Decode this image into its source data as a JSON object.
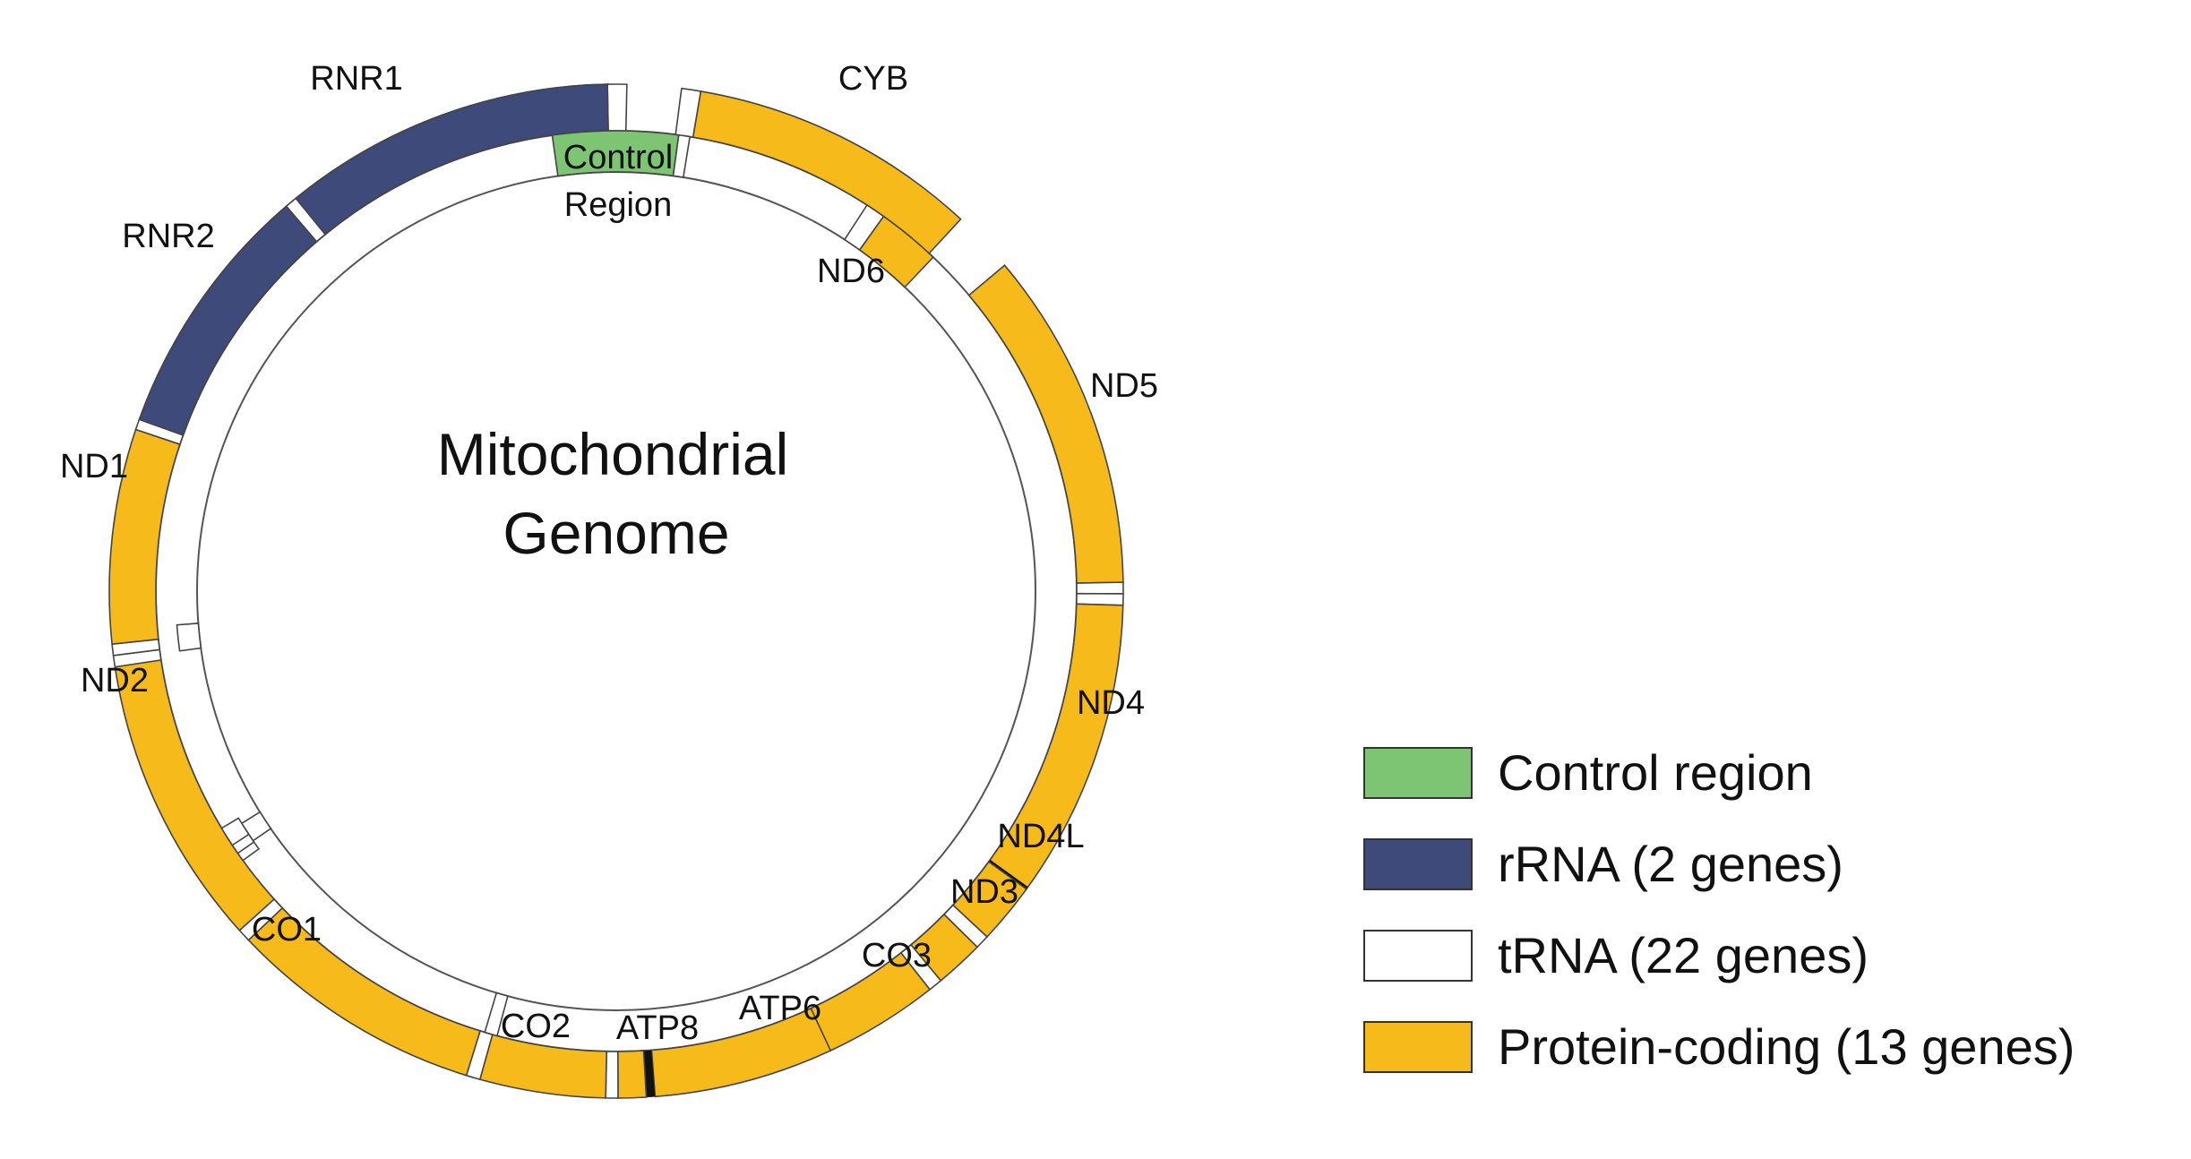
{
  "title_lines": [
    "Mitochondrial",
    "Genome"
  ],
  "colors": {
    "control": "#7dc572",
    "rrna": "#3d4a7a",
    "trna": "#ffffff",
    "protein": "#f6bb1a",
    "outline": "#444444"
  },
  "gene_labels": {
    "rnr1": "RNR1",
    "cyb": "CYB",
    "control_line1": "Control",
    "control_line2": "Region",
    "rnr2": "RNR2",
    "nd6": "ND6",
    "nd5": "ND5",
    "nd1": "ND1",
    "nd2": "ND2",
    "nd4": "ND4",
    "nd4l": "ND4L",
    "nd3": "ND3",
    "co1": "CO1",
    "co3": "CO3",
    "co2": "CO2",
    "atp8": "ATP8",
    "atp6": "ATP6"
  },
  "legend": [
    {
      "label": "Control region",
      "color": "#7dc572"
    },
    {
      "label": "rRNA (2 genes)",
      "color": "#3d4a7a"
    },
    {
      "label": "tRNA (22 genes)",
      "color": "#ffffff"
    },
    {
      "label": "Protein-coding (13 genes)",
      "color": "#f6bb1a"
    }
  ]
}
